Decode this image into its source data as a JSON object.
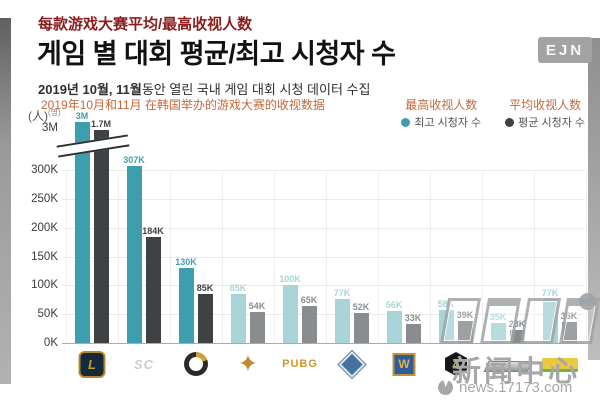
{
  "header": {
    "zh_title": "每款游戏大赛平均/最高收视人数",
    "ko_title": "게임 별 대회 평균/최고 시청자 수",
    "ko_subtitle_strong": "2019년 10월, 11월",
    "ko_subtitle_rest": "동안 열린 국내 게임 대회 시청 데이터 수집",
    "zh_subtitle": "2019年10月和11月 在韩国举办的游戏大赛的收视数据"
  },
  "ejn_badge": "EJN",
  "legend": {
    "max_zh": "最高收视人数",
    "avg_zh": "平均收视人数",
    "max_ko": "최고 시청자 수",
    "avg_ko": "평균 시청자 수"
  },
  "colors": {
    "teal": "#3D9FAD",
    "teal_light": "#A8D4D8",
    "dark": "#3F4245",
    "gray_light": "#8A8D8F",
    "orange": "#C2693A",
    "dark_red": "#8A1C1C"
  },
  "y_axis": {
    "unit_zh": "(人)",
    "unit_ko": "(명)",
    "break_top_label": "3M",
    "ticks": [
      "0K",
      "50K",
      "100K",
      "150K",
      "200K",
      "250K",
      "300K"
    ]
  },
  "chart_data": {
    "type": "bar",
    "title": "게임 별 대회 평균/최고 시청자 수 (每款游戏大赛平均/最高收视人数)",
    "axis_break": true,
    "ylim": [
      0,
      330000
    ],
    "break_top_value": 3000000,
    "categories": [
      "LoL",
      "SC",
      "Overwatch",
      "Gold badge game",
      "PUBG",
      "StarCraft II",
      "W",
      "4",
      "Silver wordmark game",
      "Yellow wordmark game"
    ],
    "series": [
      {
        "name": "최고 시청자 수 (最高收视人数)",
        "values": [
          3000000,
          307000,
          130000,
          85000,
          100000,
          77000,
          56000,
          58000,
          35000,
          77000
        ],
        "labels": [
          "3M",
          "307K",
          "130K",
          "85K",
          "100K",
          "77K",
          "56K",
          "58K",
          "35K",
          "77K"
        ]
      },
      {
        "name": "평균 시청자 수 (平均收视人数)",
        "values": [
          1700000,
          184000,
          85000,
          54000,
          65000,
          52000,
          33000,
          39000,
          23000,
          36000
        ],
        "labels": [
          "1.7M",
          "184K",
          "85K",
          "54K",
          "65K",
          "52K",
          "33K",
          "39K",
          "23K",
          "36K"
        ]
      }
    ],
    "muted_from_index": 3,
    "legend_position": "top-right",
    "grid": true
  },
  "games": [
    {
      "id": "lol",
      "icon_text": "L"
    },
    {
      "id": "starcraft",
      "icon_text": "SC"
    },
    {
      "id": "overwatch",
      "icon_text": ""
    },
    {
      "id": "gold-badge",
      "icon_text": "✦"
    },
    {
      "id": "pubg",
      "icon_text": "PUBG"
    },
    {
      "id": "starcraft2",
      "icon_text": ""
    },
    {
      "id": "warcraft",
      "icon_text": "W"
    },
    {
      "id": "four-hex",
      "icon_text": "4"
    },
    {
      "id": "silver-wordmark",
      "icon_text": ""
    },
    {
      "id": "yellow-wordmark",
      "icon_text": ""
    }
  ],
  "watermark": {
    "site_title": "新闻中心",
    "site_url": "news.17173.com"
  }
}
